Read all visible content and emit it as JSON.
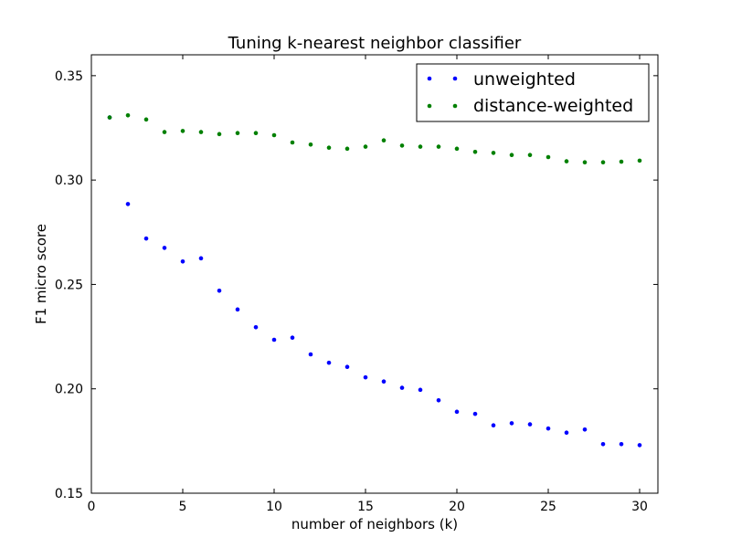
{
  "chart_data": {
    "type": "scatter",
    "title": "Tuning k-nearest neighbor classifier",
    "xlabel": "number of neighbors (k)",
    "ylabel": "F1 micro score",
    "xlim": [
      0,
      31
    ],
    "ylim": [
      0.15,
      0.36
    ],
    "xticks": [
      0,
      5,
      10,
      15,
      20,
      25,
      30
    ],
    "xtick_labels": [
      "0",
      "5",
      "10",
      "15",
      "20",
      "25",
      "30"
    ],
    "yticks": [
      0.15,
      0.2,
      0.25,
      0.3,
      0.35
    ],
    "ytick_labels": [
      "0.15",
      "0.20",
      "0.25",
      "0.30",
      "0.35"
    ],
    "grid": false,
    "legend_position": "top-right",
    "x": [
      1,
      2,
      3,
      4,
      5,
      6,
      7,
      8,
      9,
      10,
      11,
      12,
      13,
      14,
      15,
      16,
      17,
      18,
      19,
      20,
      21,
      22,
      23,
      24,
      25,
      26,
      27,
      28,
      29,
      30
    ],
    "series": [
      {
        "name": "unweighted",
        "color": "#0000ff",
        "values": [
          0.33,
          0.2885,
          0.272,
          0.2675,
          0.261,
          0.2625,
          0.247,
          0.238,
          0.2295,
          0.2235,
          0.2245,
          0.2165,
          0.2125,
          0.2105,
          0.2055,
          0.2035,
          0.2005,
          0.1995,
          0.1945,
          0.189,
          0.188,
          0.1825,
          0.1835,
          0.183,
          0.181,
          0.179,
          0.1805,
          0.1735,
          0.1735,
          0.173
        ]
      },
      {
        "name": "distance-weighted",
        "color": "#008000",
        "values": [
          0.33,
          0.331,
          0.329,
          0.323,
          0.3235,
          0.323,
          0.322,
          0.3225,
          0.3225,
          0.3215,
          0.318,
          0.317,
          0.3155,
          0.315,
          0.316,
          0.319,
          0.3165,
          0.316,
          0.316,
          0.315,
          0.3135,
          0.313,
          0.312,
          0.312,
          0.311,
          0.309,
          0.3085,
          0.3085,
          0.3088,
          0.3093
        ]
      }
    ]
  }
}
